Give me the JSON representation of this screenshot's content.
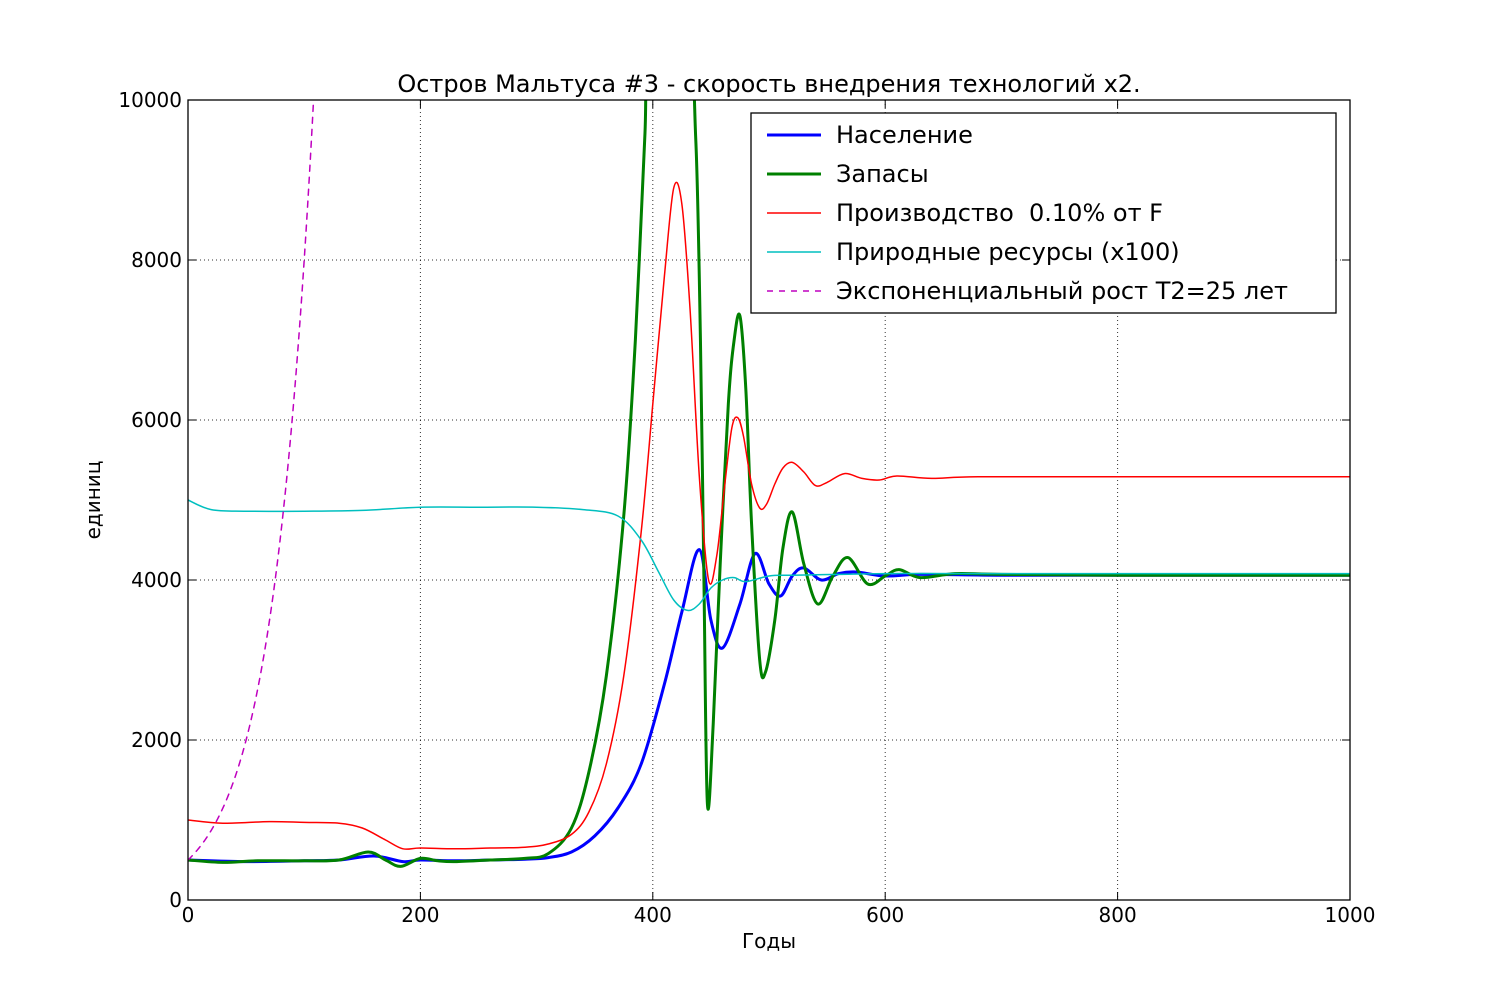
{
  "chart_data": {
    "type": "line",
    "title": "Остров Мальтуса #3 - скорость внедрения технологий x2.",
    "xlabel": "Годы",
    "ylabel": "единиц",
    "xlim": [
      0,
      1000
    ],
    "ylim": [
      0,
      10000
    ],
    "xticks": [
      0,
      200,
      400,
      600,
      800,
      1000
    ],
    "yticks": [
      0,
      2000,
      4000,
      6000,
      8000,
      10000
    ],
    "grid": true,
    "legend_position": "top-right",
    "series": [
      {
        "name": "Население",
        "color": "#0000ff",
        "style": "solid-thick",
        "x": [
          0,
          50,
          100,
          130,
          160,
          185,
          200,
          230,
          260,
          290,
          310,
          330,
          350,
          370,
          390,
          410,
          425,
          440,
          450,
          460,
          475,
          488,
          500,
          510,
          520,
          530,
          545,
          560,
          575,
          600,
          630,
          700,
          800,
          1000
        ],
        "y": [
          500,
          480,
          490,
          500,
          550,
          480,
          500,
          490,
          500,
          510,
          530,
          600,
          800,
          1150,
          1700,
          2700,
          3600,
          4380,
          3500,
          3150,
          3700,
          4330,
          3950,
          3800,
          4050,
          4150,
          4000,
          4080,
          4100,
          4050,
          4070,
          4060,
          4060,
          4060
        ]
      },
      {
        "name": "Запасы",
        "color": "#008000",
        "style": "solid-thick",
        "x": [
          0,
          30,
          60,
          100,
          130,
          155,
          170,
          183,
          200,
          215,
          230,
          260,
          290,
          310,
          330,
          345,
          360,
          375,
          385,
          393,
          398,
          430,
          437,
          441,
          444,
          447,
          452,
          458,
          465,
          470,
          475,
          480,
          485,
          492,
          497,
          505,
          512,
          520,
          530,
          542,
          555,
          568,
          585,
          600,
          612,
          630,
          660,
          700,
          800,
          1000
        ],
        "y": [
          500,
          470,
          490,
          490,
          500,
          600,
          500,
          420,
          520,
          490,
          480,
          500,
          520,
          580,
          900,
          1600,
          2800,
          4800,
          7000,
          9500,
          10600,
          10600,
          9500,
          7000,
          4000,
          1200,
          2200,
          4200,
          6200,
          7000,
          7300,
          6400,
          4700,
          3000,
          2850,
          3500,
          4400,
          4850,
          4200,
          3700,
          4050,
          4280,
          3950,
          4050,
          4130,
          4030,
          4080,
          4070,
          4060,
          4060
        ]
      },
      {
        "name": "Производство  0.10% от F",
        "color": "#ff0000",
        "style": "solid-thin",
        "x": [
          0,
          30,
          70,
          100,
          130,
          150,
          170,
          185,
          200,
          230,
          260,
          290,
          310,
          330,
          345,
          360,
          375,
          390,
          400,
          410,
          418,
          425,
          432,
          440,
          448,
          455,
          462,
          468,
          473,
          478,
          485,
          492,
          498,
          505,
          512,
          520,
          530,
          540,
          550,
          565,
          580,
          595,
          610,
          640,
          680,
          800,
          1000
        ],
        "y": [
          1000,
          960,
          980,
          970,
          960,
          900,
          750,
          640,
          650,
          640,
          650,
          660,
          700,
          820,
          1100,
          1700,
          2800,
          4600,
          6200,
          7800,
          8900,
          8700,
          7400,
          5300,
          4000,
          4300,
          5200,
          5900,
          6030,
          5800,
          5200,
          4900,
          4950,
          5200,
          5400,
          5470,
          5350,
          5180,
          5220,
          5330,
          5270,
          5250,
          5300,
          5270,
          5290,
          5290,
          5290
        ]
      },
      {
        "name": "Природные ресурсы (x100)",
        "color": "#00bfbf",
        "style": "solid-thin",
        "x": [
          0,
          20,
          50,
          100,
          150,
          200,
          250,
          300,
          340,
          370,
          390,
          405,
          418,
          430,
          440,
          450,
          460,
          470,
          480,
          500,
          520,
          560,
          600,
          700,
          1000
        ],
        "y": [
          5000,
          4880,
          4860,
          4860,
          4870,
          4910,
          4910,
          4910,
          4880,
          4800,
          4500,
          4100,
          3750,
          3620,
          3700,
          3900,
          4000,
          4030,
          3980,
          4050,
          4060,
          4070,
          4080,
          4080,
          4080
        ]
      },
      {
        "name": "Экспоненциальный рост T2=25 лет",
        "color": "#bf00bf",
        "style": "dashed",
        "formula": "500*2^(x/25)",
        "x": [
          0,
          10,
          20,
          30,
          40,
          50,
          60,
          70,
          80,
          90,
          100,
          108
        ],
        "y": [
          500,
          660,
          871,
          1149,
          1516,
          2000,
          2639,
          3482,
          4595,
          6063,
          8000,
          10000
        ]
      }
    ]
  }
}
